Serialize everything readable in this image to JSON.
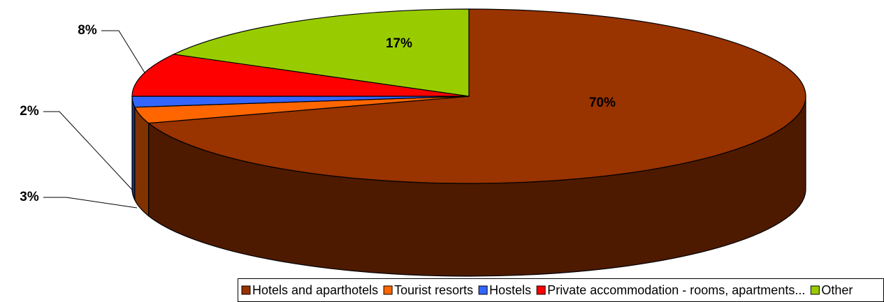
{
  "chart_data": {
    "type": "pie",
    "categories": [
      "Hotels and aparthotels",
      "Tourist resorts",
      "Hostels",
      "Private accommodation - rooms, apartments...",
      "Other"
    ],
    "values": [
      70,
      3,
      2,
      8,
      17
    ],
    "value_labels": [
      "70%",
      "3%",
      "2%",
      "8%",
      "17%"
    ],
    "colors": [
      "#993300",
      "#ff6600",
      "#3366ff",
      "#ff0000",
      "#99cc00"
    ],
    "legend": "bottom"
  }
}
